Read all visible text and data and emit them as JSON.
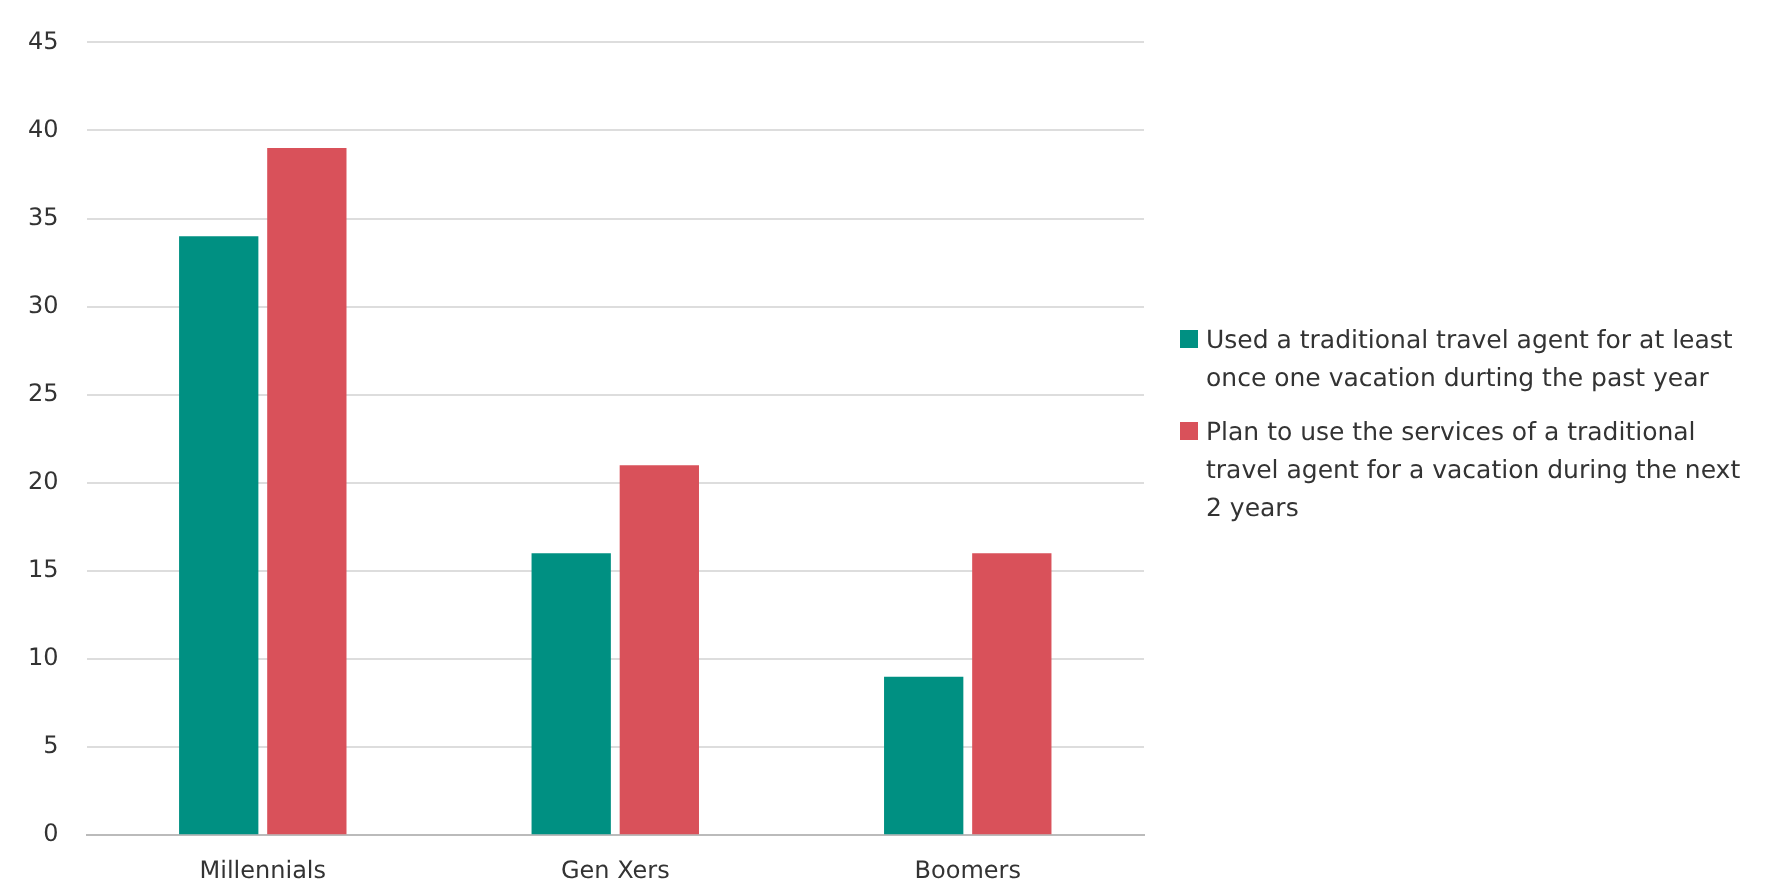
{
  "chart_data": {
    "type": "bar",
    "categories": [
      "Millennials",
      "Gen Xers",
      "Boomers"
    ],
    "series": [
      {
        "name": "Used a traditional travel agent for at least once one vacation durting the past year",
        "color": "#009082",
        "values": [
          34,
          16,
          9
        ]
      },
      {
        "name": "Plan to use the services of a traditional travel agent for a vacation during the next 2 years",
        "color": "#d9515a",
        "values": [
          39,
          21,
          16
        ]
      }
    ],
    "ylim": [
      0,
      45
    ],
    "yticks": [
      0,
      5,
      10,
      15,
      20,
      25,
      30,
      35,
      40,
      45
    ],
    "grid": "y",
    "legend": "right"
  }
}
